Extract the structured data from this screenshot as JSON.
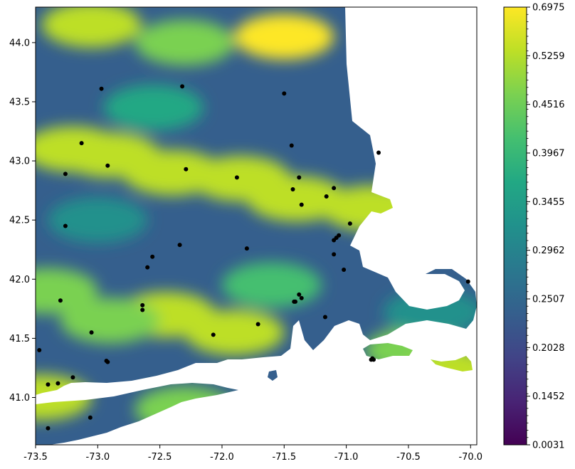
{
  "chart_data": {
    "type": "heatmap",
    "title": "",
    "xlabel": "",
    "ylabel": "",
    "xlim": [
      -73.5,
      -69.95
    ],
    "ylim": [
      40.6,
      44.3
    ],
    "x_ticks": [
      "-73.5",
      "-73.0",
      "-72.5",
      "-72.0",
      "-71.5",
      "-71.0",
      "-70.5",
      "-70.0"
    ],
    "y_ticks": [
      "41.0",
      "41.5",
      "42.0",
      "42.5",
      "43.0",
      "43.5",
      "44.0"
    ],
    "colorbar": {
      "colormap": "viridis",
      "tick_labels": [
        "0.0031",
        "0.1452",
        "0.2028",
        "0.2507",
        "0.2962",
        "0.3455",
        "0.3967",
        "0.4516",
        "0.5259",
        "0.6975"
      ]
    },
    "grid": false,
    "stations": [
      [
        -72.97,
        43.61
      ],
      [
        -72.32,
        43.63
      ],
      [
        -71.5,
        43.57
      ],
      [
        -73.13,
        43.15
      ],
      [
        -71.44,
        43.13
      ],
      [
        -70.74,
        43.07
      ],
      [
        -73.26,
        42.89
      ],
      [
        -72.92,
        42.96
      ],
      [
        -72.29,
        42.93
      ],
      [
        -71.88,
        42.86
      ],
      [
        -71.38,
        42.86
      ],
      [
        -71.43,
        42.76
      ],
      [
        -71.1,
        42.77
      ],
      [
        -71.16,
        42.7
      ],
      [
        -71.36,
        42.63
      ],
      [
        -73.26,
        42.45
      ],
      [
        -70.97,
        42.47
      ],
      [
        -71.06,
        42.37
      ],
      [
        -71.08,
        42.35
      ],
      [
        -71.1,
        42.33
      ],
      [
        -72.34,
        42.29
      ],
      [
        -71.8,
        42.26
      ],
      [
        -72.56,
        42.19
      ],
      [
        -71.1,
        42.21
      ],
      [
        -72.6,
        42.1
      ],
      [
        -71.02,
        42.08
      ],
      [
        -70.02,
        41.98
      ],
      [
        -71.38,
        41.87
      ],
      [
        -73.3,
        41.82
      ],
      [
        -71.36,
        41.84
      ],
      [
        -71.42,
        41.81
      ],
      [
        -71.41,
        41.81
      ],
      [
        -72.64,
        41.78
      ],
      [
        -72.64,
        41.74
      ],
      [
        -71.17,
        41.68
      ],
      [
        -71.71,
        41.62
      ],
      [
        -73.05,
        41.55
      ],
      [
        -72.07,
        41.53
      ],
      [
        -73.47,
        41.4
      ],
      [
        -72.93,
        41.31
      ],
      [
        -72.92,
        41.3
      ],
      [
        -70.79,
        41.33
      ],
      [
        -70.78,
        41.32
      ],
      [
        -70.8,
        41.32
      ],
      [
        -73.2,
        41.17
      ],
      [
        -73.4,
        41.11
      ],
      [
        -73.32,
        41.12
      ],
      [
        -73.06,
        40.83
      ],
      [
        -73.4,
        40.74
      ]
    ],
    "field_centers": [
      [
        -72.9,
        43.05,
        0.62
      ],
      [
        -72.4,
        42.9,
        0.65
      ],
      [
        -71.85,
        42.85,
        0.63
      ],
      [
        -71.4,
        42.68,
        0.64
      ],
      [
        -73.2,
        43.1,
        0.66
      ],
      [
        -71.5,
        44.05,
        0.68
      ],
      [
        -73.05,
        44.15,
        0.62
      ],
      [
        -72.3,
        44.0,
        0.55
      ],
      [
        -72.45,
        41.7,
        0.66
      ],
      [
        -73.4,
        41.9,
        0.58
      ],
      [
        -71.9,
        41.55,
        0.62
      ],
      [
        -72.9,
        41.65,
        0.55
      ],
      [
        -70.8,
        42.6,
        0.64
      ],
      [
        -71.6,
        41.95,
        0.47
      ],
      [
        -73.45,
        41.0,
        0.6
      ],
      [
        -72.3,
        40.9,
        0.55
      ],
      [
        -70.45,
        41.4,
        0.56
      ],
      [
        -70.1,
        41.2,
        0.66
      ],
      [
        -70.3,
        41.72,
        0.33
      ],
      [
        -72.55,
        43.45,
        0.45
      ],
      [
        -73.0,
        42.5,
        0.38
      ]
    ]
  }
}
